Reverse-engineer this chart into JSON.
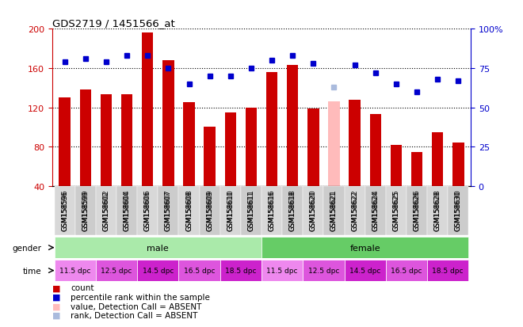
{
  "title": "GDS2719 / 1451566_at",
  "samples": [
    "GSM158596",
    "GSM158599",
    "GSM158602",
    "GSM158604",
    "GSM158606",
    "GSM158607",
    "GSM158608",
    "GSM158609",
    "GSM158610",
    "GSM158611",
    "GSM158616",
    "GSM158618",
    "GSM158620",
    "GSM158621",
    "GSM158622",
    "GSM158624",
    "GSM158625",
    "GSM158626",
    "GSM158628",
    "GSM158630"
  ],
  "bar_values": [
    130,
    138,
    133,
    133,
    196,
    168,
    125,
    100,
    115,
    120,
    156,
    163,
    119,
    126,
    128,
    113,
    82,
    75,
    95,
    84
  ],
  "bar_colors": [
    "#cc0000",
    "#cc0000",
    "#cc0000",
    "#cc0000",
    "#cc0000",
    "#cc0000",
    "#cc0000",
    "#cc0000",
    "#cc0000",
    "#cc0000",
    "#cc0000",
    "#cc0000",
    "#cc0000",
    "#ffbbbb",
    "#cc0000",
    "#cc0000",
    "#cc0000",
    "#cc0000",
    "#cc0000",
    "#cc0000"
  ],
  "rank_values": [
    79,
    81,
    79,
    83,
    83,
    75,
    65,
    70,
    70,
    75,
    80,
    83,
    78,
    63,
    77,
    72,
    65,
    60,
    68,
    67
  ],
  "rank_colors": [
    "#0000cc",
    "#0000cc",
    "#0000cc",
    "#0000cc",
    "#0000cc",
    "#0000cc",
    "#0000cc",
    "#0000cc",
    "#0000cc",
    "#0000cc",
    "#0000cc",
    "#0000cc",
    "#0000cc",
    "#aabbdd",
    "#0000cc",
    "#0000cc",
    "#0000cc",
    "#0000cc",
    "#0000cc",
    "#0000cc"
  ],
  "absent_index": 13,
  "ylim_left": [
    40,
    200
  ],
  "ylim_right": [
    0,
    100
  ],
  "yticks_left": [
    40,
    80,
    120,
    160,
    200
  ],
  "yticks_right": [
    0,
    25,
    50,
    75,
    100
  ],
  "ytick_labels_right": [
    "0",
    "25",
    "50",
    "75",
    "100%"
  ],
  "time_labels": [
    "11.5 dpc",
    "12.5 dpc",
    "14.5 dpc",
    "16.5 dpc",
    "18.5 dpc",
    "11.5 dpc",
    "12.5 dpc",
    "14.5 dpc",
    "16.5 dpc",
    "18.5 dpc"
  ],
  "gender_male_color": "#aaeaaa",
  "gender_female_color": "#66cc66",
  "time_colors": [
    "#ee88ee",
    "#dd55dd",
    "#cc22cc",
    "#dd55dd",
    "#cc22cc",
    "#ee88ee",
    "#dd55dd",
    "#cc22cc",
    "#dd55dd",
    "#cc22cc"
  ],
  "bg_color": "#ffffff",
  "plot_bg_color": "#ffffff",
  "left_axis_color": "#cc0000",
  "right_axis_color": "#0000cc",
  "bar_width": 0.55,
  "legend_items": [
    {
      "color": "#cc0000",
      "label": "count"
    },
    {
      "color": "#0000cc",
      "label": "percentile rank within the sample"
    },
    {
      "color": "#ffbbbb",
      "label": "value, Detection Call = ABSENT"
    },
    {
      "color": "#aabbdd",
      "label": "rank, Detection Call = ABSENT"
    }
  ]
}
